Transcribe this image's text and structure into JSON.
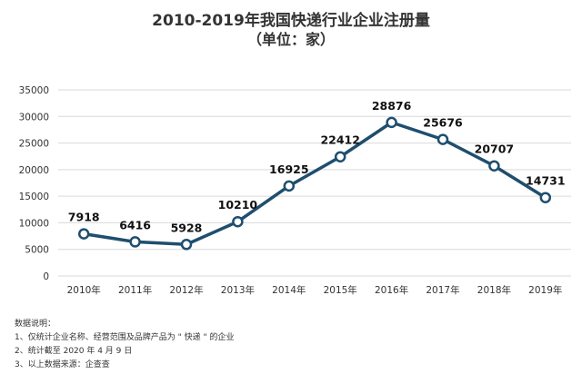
{
  "chart_data": {
    "type": "line",
    "title": "2010-2019年我国快递行业企业注册量",
    "subtitle": "（单位：家）",
    "categories": [
      "2010年",
      "2011年",
      "2012年",
      "2013年",
      "2014年",
      "2015年",
      "2016年",
      "2017年",
      "2018年",
      "2019年"
    ],
    "values": [
      7918,
      6416,
      5928,
      10210,
      16925,
      22412,
      28876,
      25676,
      20707,
      14731
    ],
    "data_labels": [
      "7918",
      "6416",
      "5928",
      "10210",
      "16925",
      "22412",
      "28876",
      "25676",
      "20707",
      "14731"
    ],
    "y_ticks": [
      "0",
      "5000",
      "10000",
      "15000",
      "20000",
      "25000",
      "30000",
      "35000"
    ],
    "ylim": [
      0,
      35000
    ],
    "grid": true,
    "legend": "none",
    "line_color": "#1f4e6e",
    "marker_fill": "#ffffff"
  },
  "notes": {
    "heading": "数据说明：",
    "items": [
      "1、仅统计企业名称、经营范围及品牌产品为 \" 快递 \" 的企业",
      "2、统计截至 2020 年 4 月 9 日",
      "3、以上数据来源：企查查"
    ]
  }
}
